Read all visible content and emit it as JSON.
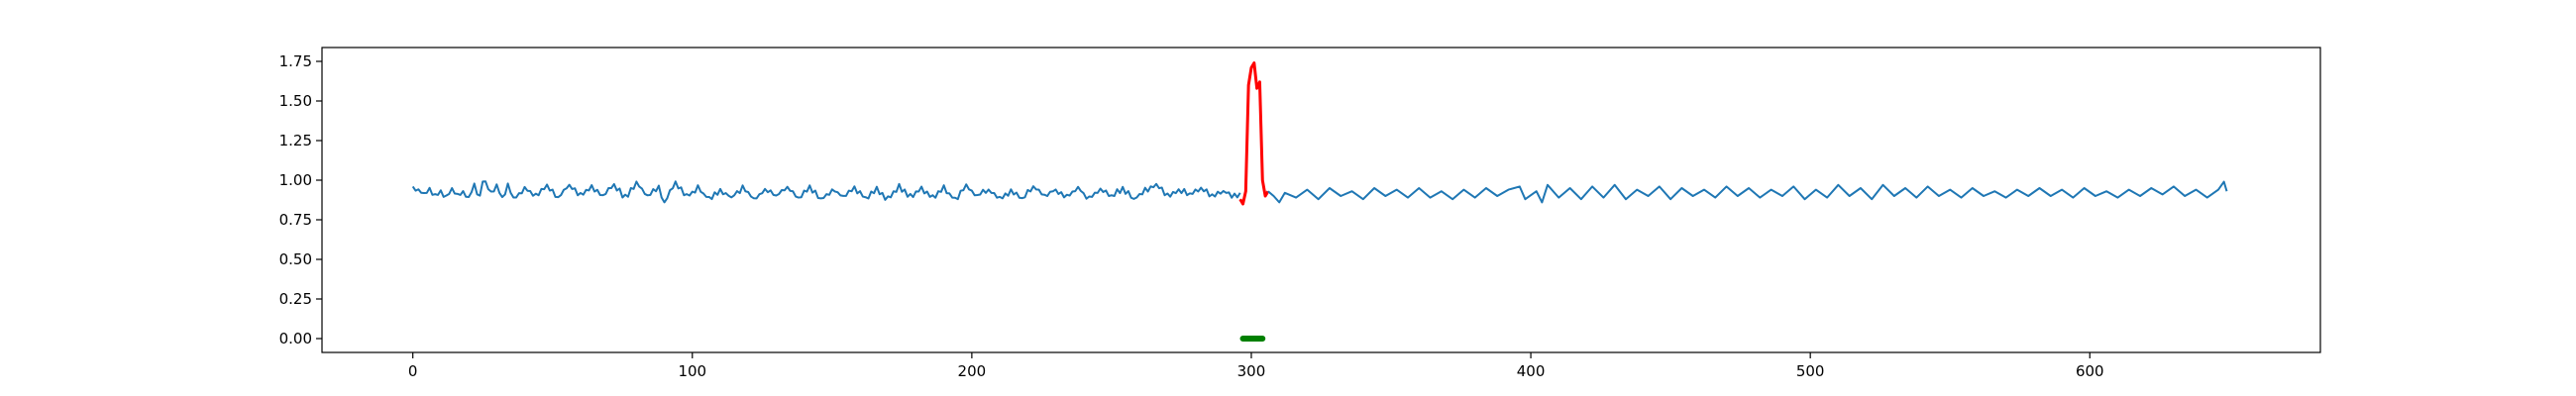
{
  "chart_data": {
    "type": "line",
    "title": "",
    "xlabel": "",
    "ylabel": "",
    "xlim": [
      -32.5,
      682.5
    ],
    "ylim": [
      -0.0875,
      1.8375
    ],
    "xticks": [
      0,
      100,
      200,
      300,
      400,
      500,
      600
    ],
    "yticks": [
      0.0,
      0.25,
      0.5,
      0.75,
      1.0,
      1.25,
      1.5,
      1.75
    ],
    "xtick_labels": [
      "0",
      "100",
      "200",
      "300",
      "400",
      "500",
      "600"
    ],
    "ytick_labels": [
      "0.00",
      "0.25",
      "0.50",
      "0.75",
      "1.00",
      "1.25",
      "1.50",
      "1.75"
    ],
    "grid": false,
    "series": [
      {
        "role": "signal",
        "color": "#1f77b4",
        "x_start": 0,
        "x_end": 649,
        "noise_band": [
          0.86,
          1.0
        ],
        "points": [
          [
            0,
            0.95
          ],
          [
            2,
            0.94
          ],
          [
            4,
            0.91
          ],
          [
            6,
            0.95
          ],
          [
            8,
            0.9
          ],
          [
            10,
            0.93
          ],
          [
            12,
            0.89
          ],
          [
            14,
            0.94
          ],
          [
            16,
            0.9
          ],
          [
            18,
            0.92
          ],
          [
            20,
            0.89
          ],
          [
            22,
            0.96
          ],
          [
            24,
            0.9
          ],
          [
            25,
            1.0
          ],
          [
            28,
            0.92
          ],
          [
            30,
            0.96
          ],
          [
            32,
            0.89
          ],
          [
            34,
            0.97
          ],
          [
            36,
            0.88
          ],
          [
            40,
            0.95
          ],
          [
            44,
            0.91
          ],
          [
            48,
            0.96
          ],
          [
            52,
            0.89
          ],
          [
            56,
            0.97
          ],
          [
            60,
            0.9
          ],
          [
            64,
            0.96
          ],
          [
            68,
            0.9
          ],
          [
            72,
            0.97
          ],
          [
            76,
            0.89
          ],
          [
            80,
            0.98
          ],
          [
            84,
            0.9
          ],
          [
            88,
            0.96
          ],
          [
            90,
            0.86
          ],
          [
            94,
            0.99
          ],
          [
            98,
            0.9
          ],
          [
            102,
            0.95
          ],
          [
            106,
            0.88
          ],
          [
            110,
            0.94
          ],
          [
            114,
            0.89
          ],
          [
            118,
            0.95
          ],
          [
            122,
            0.88
          ],
          [
            126,
            0.94
          ],
          [
            130,
            0.9
          ],
          [
            134,
            0.95
          ],
          [
            138,
            0.89
          ],
          [
            142,
            0.96
          ],
          [
            146,
            0.88
          ],
          [
            150,
            0.94
          ],
          [
            154,
            0.9
          ],
          [
            158,
            0.95
          ],
          [
            162,
            0.89
          ],
          [
            166,
            0.94
          ],
          [
            170,
            0.88
          ],
          [
            174,
            0.96
          ],
          [
            178,
            0.9
          ],
          [
            182,
            0.94
          ],
          [
            186,
            0.89
          ],
          [
            190,
            0.95
          ],
          [
            194,
            0.88
          ],
          [
            198,
            0.96
          ],
          [
            202,
            0.9
          ],
          [
            206,
            0.94
          ],
          [
            210,
            0.89
          ],
          [
            214,
            0.93
          ],
          [
            218,
            0.88
          ],
          [
            222,
            0.96
          ],
          [
            226,
            0.9
          ],
          [
            230,
            0.94
          ],
          [
            234,
            0.89
          ],
          [
            238,
            0.95
          ],
          [
            242,
            0.88
          ],
          [
            246,
            0.94
          ],
          [
            250,
            0.9
          ],
          [
            254,
            0.95
          ],
          [
            258,
            0.88
          ],
          [
            262,
            0.94
          ],
          [
            266,
            0.97
          ],
          [
            270,
            0.9
          ],
          [
            274,
            0.94
          ],
          [
            278,
            0.91
          ],
          [
            282,
            0.95
          ],
          [
            286,
            0.9
          ],
          [
            290,
            0.93
          ],
          [
            294,
            0.9
          ],
          [
            296,
            0.92
          ]
        ]
      },
      {
        "role": "anomaly",
        "color": "#ff0000",
        "points": [
          [
            296,
            0.88
          ],
          [
            297,
            0.85
          ],
          [
            298,
            0.93
          ],
          [
            299,
            1.6
          ],
          [
            300,
            1.71
          ],
          [
            301,
            1.74
          ],
          [
            302,
            1.58
          ],
          [
            303,
            1.62
          ],
          [
            304,
            1.0
          ],
          [
            305,
            0.9
          ],
          [
            306,
            0.93
          ]
        ]
      },
      {
        "role": "signal",
        "color": "#1f77b4",
        "points": [
          [
            306,
            0.93
          ],
          [
            308,
            0.9
          ],
          [
            310,
            0.86
          ],
          [
            312,
            0.92
          ],
          [
            316,
            0.89
          ],
          [
            320,
            0.94
          ],
          [
            324,
            0.88
          ],
          [
            328,
            0.95
          ],
          [
            332,
            0.9
          ],
          [
            336,
            0.93
          ],
          [
            340,
            0.88
          ],
          [
            344,
            0.95
          ],
          [
            348,
            0.9
          ],
          [
            352,
            0.94
          ],
          [
            356,
            0.89
          ],
          [
            360,
            0.95
          ],
          [
            364,
            0.89
          ],
          [
            368,
            0.93
          ],
          [
            372,
            0.88
          ],
          [
            376,
            0.94
          ],
          [
            380,
            0.89
          ],
          [
            384,
            0.95
          ],
          [
            388,
            0.9
          ],
          [
            392,
            0.94
          ],
          [
            396,
            0.96
          ],
          [
            398,
            0.88
          ],
          [
            402,
            0.93
          ],
          [
            404,
            0.86
          ],
          [
            406,
            0.97
          ],
          [
            410,
            0.89
          ],
          [
            414,
            0.95
          ],
          [
            418,
            0.88
          ],
          [
            422,
            0.96
          ],
          [
            426,
            0.89
          ],
          [
            430,
            0.97
          ],
          [
            434,
            0.88
          ],
          [
            438,
            0.94
          ],
          [
            442,
            0.9
          ],
          [
            446,
            0.96
          ],
          [
            450,
            0.88
          ],
          [
            454,
            0.95
          ],
          [
            458,
            0.9
          ],
          [
            462,
            0.94
          ],
          [
            466,
            0.89
          ],
          [
            470,
            0.96
          ],
          [
            474,
            0.9
          ],
          [
            478,
            0.95
          ],
          [
            482,
            0.89
          ],
          [
            486,
            0.94
          ],
          [
            490,
            0.9
          ],
          [
            494,
            0.96
          ],
          [
            498,
            0.88
          ],
          [
            502,
            0.94
          ],
          [
            506,
            0.89
          ],
          [
            510,
            0.97
          ],
          [
            514,
            0.9
          ],
          [
            518,
            0.95
          ],
          [
            522,
            0.88
          ],
          [
            526,
            0.97
          ],
          [
            530,
            0.9
          ],
          [
            534,
            0.95
          ],
          [
            538,
            0.89
          ],
          [
            542,
            0.96
          ],
          [
            546,
            0.9
          ],
          [
            550,
            0.94
          ],
          [
            554,
            0.89
          ],
          [
            558,
            0.95
          ],
          [
            562,
            0.9
          ],
          [
            566,
            0.93
          ],
          [
            570,
            0.89
          ],
          [
            574,
            0.94
          ],
          [
            578,
            0.9
          ],
          [
            582,
            0.95
          ],
          [
            586,
            0.9
          ],
          [
            590,
            0.94
          ],
          [
            594,
            0.89
          ],
          [
            598,
            0.95
          ],
          [
            602,
            0.9
          ],
          [
            606,
            0.93
          ],
          [
            610,
            0.89
          ],
          [
            614,
            0.94
          ],
          [
            618,
            0.9
          ],
          [
            622,
            0.95
          ],
          [
            626,
            0.91
          ],
          [
            630,
            0.96
          ],
          [
            634,
            0.9
          ],
          [
            638,
            0.94
          ],
          [
            642,
            0.89
          ],
          [
            646,
            0.94
          ],
          [
            648,
            0.99
          ],
          [
            649,
            0.93
          ]
        ]
      },
      {
        "role": "label-marker",
        "color": "#008000",
        "points": [
          [
            297,
            0.0
          ],
          [
            304,
            0.0
          ]
        ]
      }
    ]
  }
}
